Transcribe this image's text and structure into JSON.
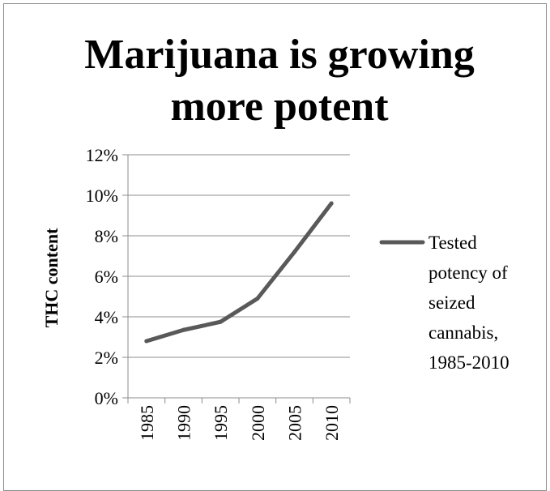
{
  "chart_data": {
    "type": "line",
    "title_lines": [
      "Marijuana is growing",
      "more potent"
    ],
    "xlabel": "",
    "ylabel": "THC content",
    "categories": [
      "1985",
      "1990",
      "1995",
      "2000",
      "2005",
      "2010"
    ],
    "series": [
      {
        "name_lines": [
          "Tested",
          "potency of",
          "seized",
          "cannabis,",
          "1985-2010"
        ],
        "values": [
          2.8,
          3.35,
          3.75,
          4.9,
          7.2,
          9.6
        ]
      }
    ],
    "ylim": [
      0,
      12
    ],
    "yticks": [
      "0%",
      "2%",
      "4%",
      "6%",
      "8%",
      "10%",
      "12%"
    ],
    "grid": true,
    "legend_position": "right",
    "colors": {
      "series_line": "#595959",
      "gridline": "#8c8c8c",
      "axis": "#8c8c8c",
      "frame": "#8c8c8c",
      "text": "#000000"
    }
  }
}
